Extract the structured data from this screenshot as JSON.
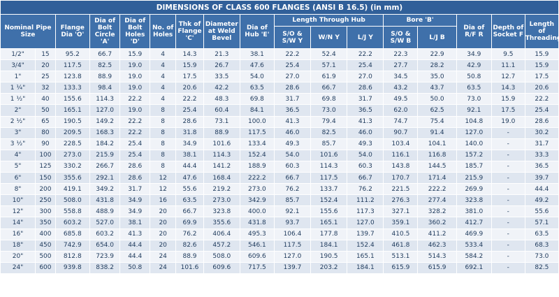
{
  "table": {
    "title": "DIMENSIONS OF CLASS 600 FLANGES (ANSI B 16.5) (in mm)",
    "headers": {
      "nominal_pipe_size": "Nominal Pipe Size",
      "flange_dia": "Flange Dia 'O'",
      "bolt_circle": "Dia of Bolt Circle 'A'",
      "bolt_holes": "Dia of Bolt Holes 'D'",
      "no_of_holes": "No. of Holes",
      "thk_flange": "Thk of Flange 'C'",
      "dia_weld_bevel": "Diameter at Weld Bevel",
      "dia_hub": "Dia of Hub 'E'",
      "length_through_hub": "Length Through Hub",
      "lth_sow": "S/O & S/W Y",
      "lth_wn": "W/N Y",
      "lth_lj": "L/J Y",
      "bore": "Bore 'B'",
      "bore_sow": "S/O & S/W B",
      "bore_lj": "L/J B",
      "dia_rf": "Dia of R/F R",
      "depth_socket": "Depth of Socket F",
      "length_threading": "Length of Threading"
    },
    "rows": [
      [
        "1/2\"",
        "15",
        "95.2",
        "66.7",
        "15.9",
        "4",
        "14.3",
        "21.3",
        "38.1",
        "22.2",
        "52.4",
        "22.2",
        "22.3",
        "22.9",
        "34.9",
        "9.5",
        "15.9"
      ],
      [
        "3/4\"",
        "20",
        "117.5",
        "82.5",
        "19.0",
        "4",
        "15.9",
        "26.7",
        "47.6",
        "25.4",
        "57.1",
        "25.4",
        "27.7",
        "28.2",
        "42.9",
        "11.1",
        "15.9"
      ],
      [
        "1\"",
        "25",
        "123.8",
        "88.9",
        "19.0",
        "4",
        "17.5",
        "33.5",
        "54.0",
        "27.0",
        "61.9",
        "27.0",
        "34.5",
        "35.0",
        "50.8",
        "12.7",
        "17.5"
      ],
      [
        "1 ¼\"",
        "32",
        "133.3",
        "98.4",
        "19.0",
        "4",
        "20.6",
        "42.2",
        "63.5",
        "28.6",
        "66.7",
        "28.6",
        "43.2",
        "43.7",
        "63.5",
        "14.3",
        "20.6"
      ],
      [
        "1 ½\"",
        "40",
        "155.6",
        "114.3",
        "22.2",
        "4",
        "22.2",
        "48.3",
        "69.8",
        "31.7",
        "69.8",
        "31.7",
        "49.5",
        "50.0",
        "73.0",
        "15.9",
        "22.2"
      ],
      [
        "2\"",
        "50",
        "165.1",
        "127.0",
        "19.0",
        "8",
        "25.4",
        "60.4",
        "84.1",
        "36.5",
        "73.0",
        "36.5",
        "62.0",
        "62.5",
        "92.1",
        "17.5",
        "25.4"
      ],
      [
        "2 ½\"",
        "65",
        "190.5",
        "149.2",
        "22.2",
        "8",
        "28.6",
        "73.1",
        "100.0",
        "41.3",
        "79.4",
        "41.3",
        "74.7",
        "75.4",
        "104.8",
        "19.0",
        "28.6"
      ],
      [
        "3\"",
        "80",
        "209.5",
        "168.3",
        "22.2",
        "8",
        "31.8",
        "88.9",
        "117.5",
        "46.0",
        "82.5",
        "46.0",
        "90.7",
        "91.4",
        "127.0",
        "-",
        "30.2"
      ],
      [
        "3 ½\"",
        "90",
        "228.5",
        "184.2",
        "25.4",
        "8",
        "34.9",
        "101.6",
        "133.4",
        "49.3",
        "85.7",
        "49.3",
        "103.4",
        "104.1",
        "140.0",
        "-",
        "31.7"
      ],
      [
        "4\"",
        "100",
        "273.0",
        "215.9",
        "25.4",
        "8",
        "38.1",
        "114.3",
        "152.4",
        "54.0",
        "101.6",
        "54.0",
        "116.1",
        "116.8",
        "157.2",
        "-",
        "33.3"
      ],
      [
        "5\"",
        "125",
        "330.2",
        "266.7",
        "28.6",
        "8",
        "44.4",
        "141.2",
        "188.9",
        "60.3",
        "114.3",
        "60.3",
        "143.8",
        "144.5",
        "185.7",
        "-",
        "36.5"
      ],
      [
        "6\"",
        "150",
        "355.6",
        "292.1",
        "28.6",
        "12",
        "47.6",
        "168.4",
        "222.2",
        "66.7",
        "117.5",
        "66.7",
        "170.7",
        "171.4",
        "215.9",
        "-",
        "39.7"
      ],
      [
        "8\"",
        "200",
        "419.1",
        "349.2",
        "31.7",
        "12",
        "55.6",
        "219.2",
        "273.0",
        "76.2",
        "133.7",
        "76.2",
        "221.5",
        "222.2",
        "269.9",
        "-",
        "44.4"
      ],
      [
        "10\"",
        "250",
        "508.0",
        "431.8",
        "34.9",
        "16",
        "63.5",
        "273.0",
        "342.9",
        "85.7",
        "152.4",
        "111.2",
        "276.3",
        "277.4",
        "323.8",
        "-",
        "49.2"
      ],
      [
        "12\"",
        "300",
        "558.8",
        "488.9",
        "34.9",
        "20",
        "66.7",
        "323.8",
        "400.0",
        "92.1",
        "155.6",
        "117.3",
        "327.1",
        "328.2",
        "381.0",
        "-",
        "55.6"
      ],
      [
        "14\"",
        "350",
        "603.2",
        "527.0",
        "38.1",
        "20",
        "69.9",
        "355.6",
        "431.8",
        "93.7",
        "165.1",
        "127.0",
        "359.1",
        "360.2",
        "412.7",
        "-",
        "57.1"
      ],
      [
        "16\"",
        "400",
        "685.8",
        "603.2",
        "41.3",
        "20",
        "76.2",
        "406.4",
        "495.3",
        "106.4",
        "177.8",
        "139.7",
        "410.5",
        "411.2",
        "469.9",
        "-",
        "63.5"
      ],
      [
        "18\"",
        "450",
        "742.9",
        "654.0",
        "44.4",
        "20",
        "82.6",
        "457.2",
        "546.1",
        "117.5",
        "184.1",
        "152.4",
        "461.8",
        "462.3",
        "533.4",
        "-",
        "68.3"
      ],
      [
        "20\"",
        "500",
        "812.8",
        "723.9",
        "44.4",
        "24",
        "88.9",
        "508.0",
        "609.6",
        "127.0",
        "190.5",
        "165.1",
        "513.1",
        "514.3",
        "584.2",
        "-",
        "73.0"
      ],
      [
        "24\"",
        "600",
        "939.8",
        "838.2",
        "50.8",
        "24",
        "101.6",
        "609.6",
        "717.5",
        "139.7",
        "203.2",
        "184.1",
        "615.9",
        "615.9",
        "692.1",
        "-",
        "82.5"
      ]
    ]
  }
}
